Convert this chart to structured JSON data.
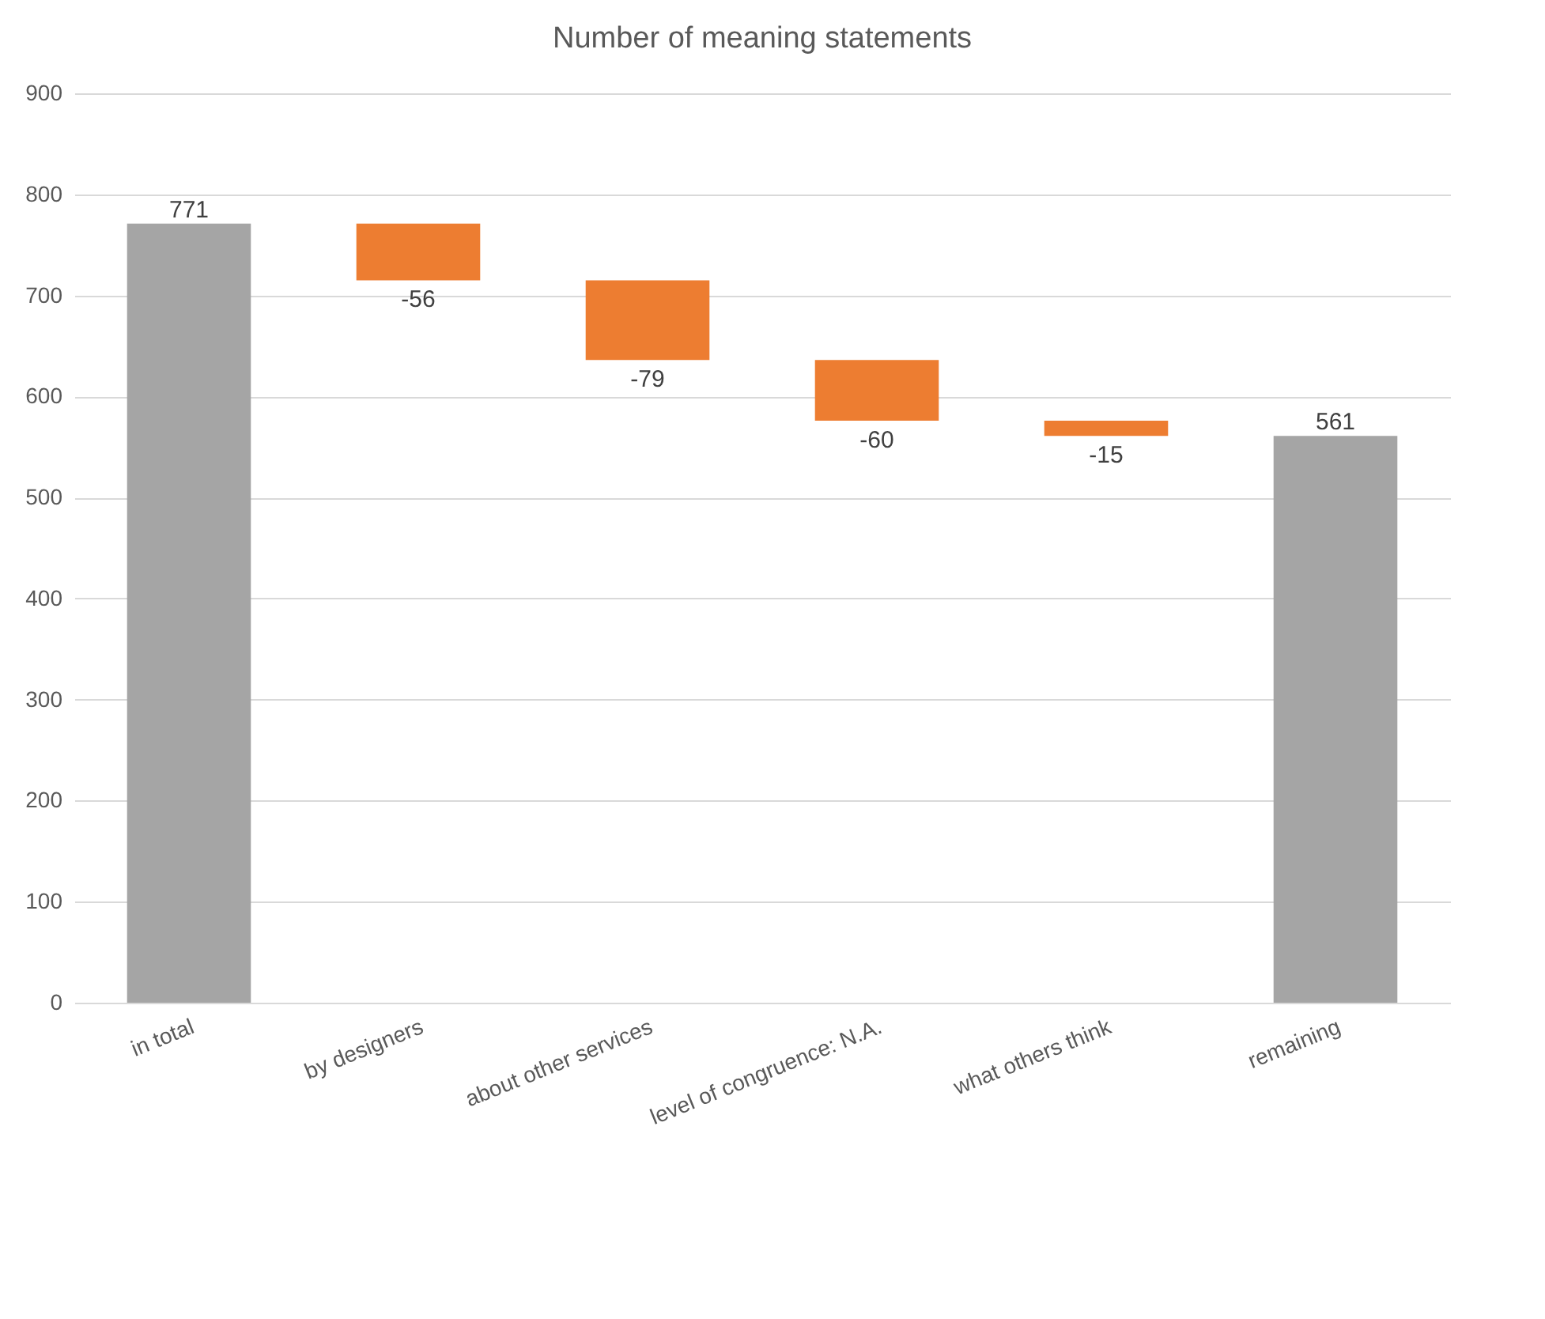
{
  "chart_data": {
    "type": "bar",
    "title": "Number of meaning statements",
    "categories": [
      "in total",
      "by designers",
      "about other services",
      "level of congruence: N.A.",
      "what others think",
      "remaining"
    ],
    "values": [
      771,
      -56,
      -79,
      -60,
      -15,
      561
    ],
    "base": [
      0,
      771,
      715,
      636,
      576,
      0
    ],
    "colors": [
      "#a5a5a5",
      "#ed7d31",
      "#ed7d31",
      "#ed7d31",
      "#ed7d31",
      "#a5a5a5"
    ],
    "ylim": [
      0,
      900
    ],
    "yticks": [
      0,
      100,
      200,
      300,
      400,
      500,
      600,
      700,
      800,
      900
    ],
    "grid": "y",
    "data_labels": true
  }
}
